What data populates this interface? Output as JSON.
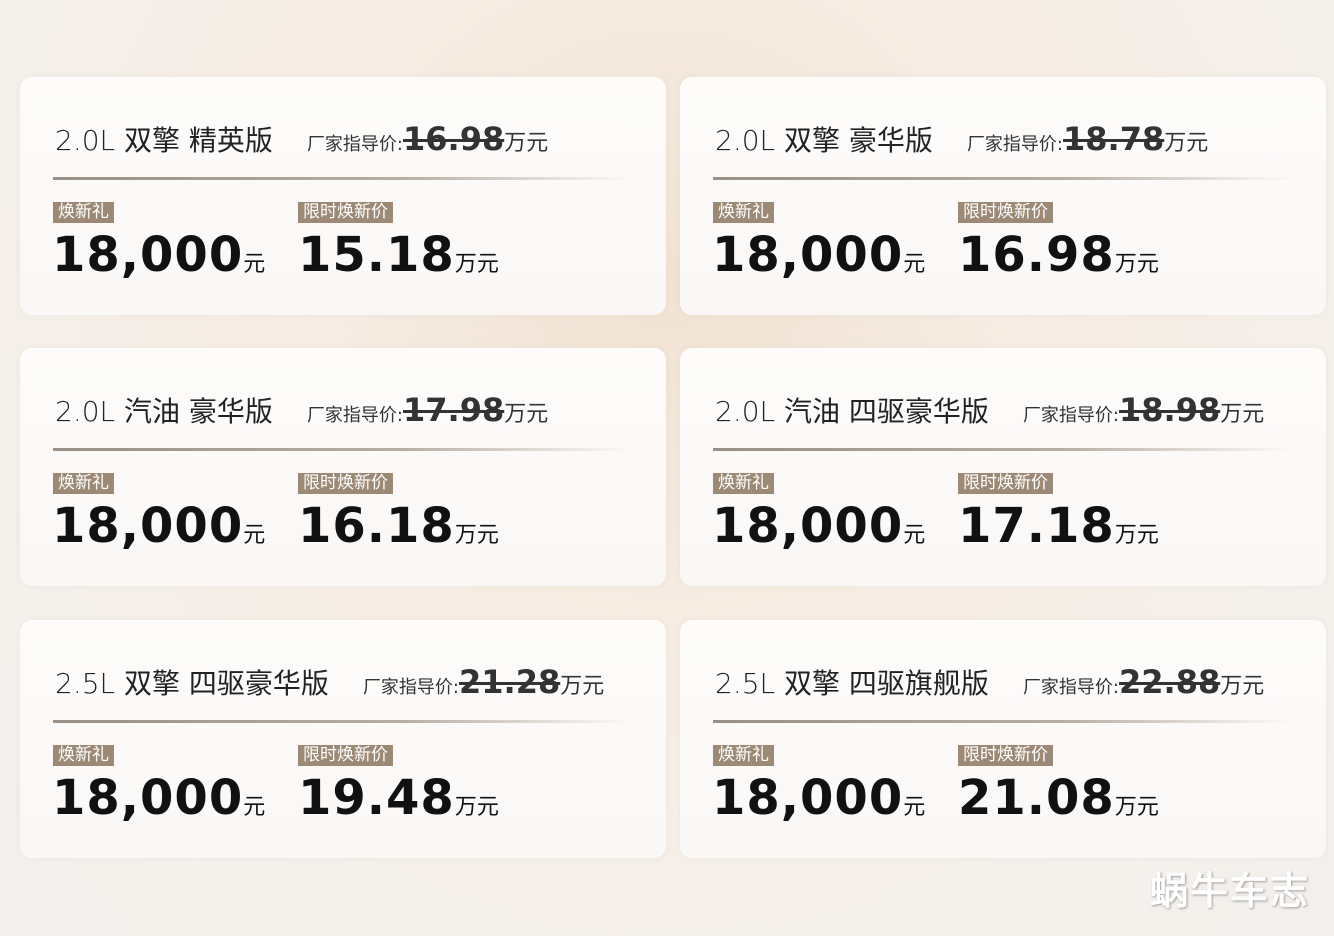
{
  "labels": {
    "msrp": "厂家指导价:",
    "gift": "焕新礼",
    "limited": "限时焕新价",
    "yuan": "元",
    "wanyuan": "万元"
  },
  "accent_color": "#9c8a76",
  "cards": [
    {
      "title": "2.0L 双擎 精英版",
      "msrp": "16.98",
      "gift": "18,000",
      "price": "15.18"
    },
    {
      "title": "2.0L 双擎 豪华版",
      "msrp": "18.78",
      "gift": "18,000",
      "price": "16.98"
    },
    {
      "title": "2.0L 汽油 豪华版",
      "msrp": "17.98",
      "gift": "18,000",
      "price": "16.18"
    },
    {
      "title": "2.0L 汽油 四驱豪华版",
      "msrp": "18.98",
      "gift": "18,000",
      "price": "17.18"
    },
    {
      "title": "2.5L 双擎 四驱豪华版",
      "msrp": "21.28",
      "gift": "18,000",
      "price": "19.48"
    },
    {
      "title": "2.5L 双擎 四驱旗舰版",
      "msrp": "22.88",
      "gift": "18,000",
      "price": "21.08"
    }
  ],
  "watermark": "蜗牛车志"
}
